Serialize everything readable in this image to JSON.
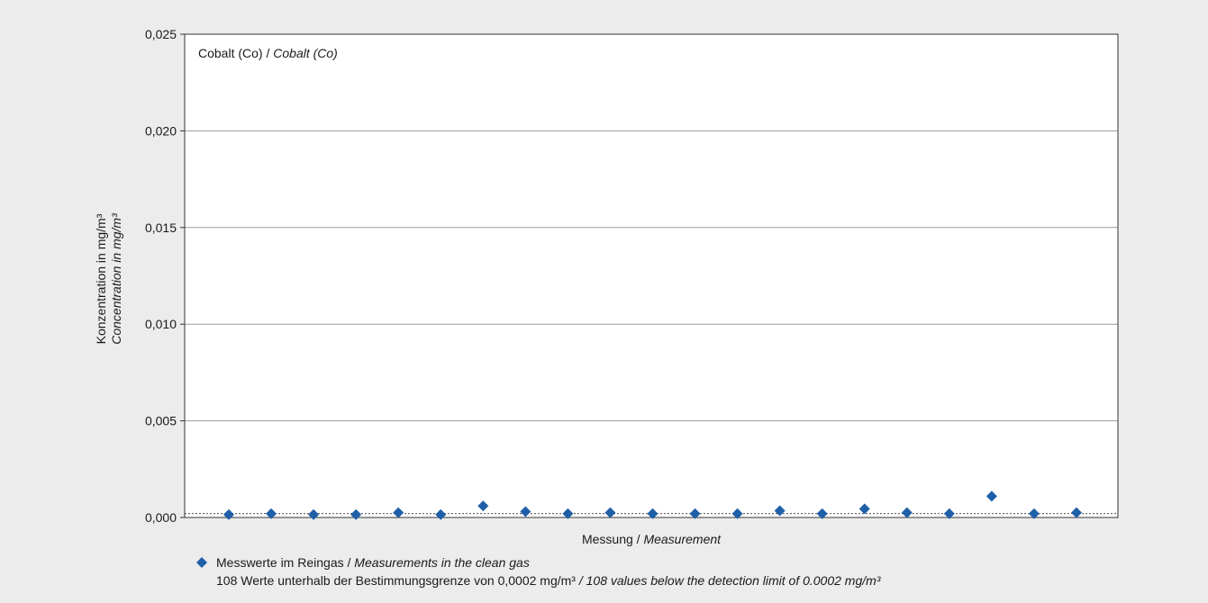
{
  "chart_data": {
    "type": "scatter",
    "title": "Cobalt (Co)",
    "title_en": "Cobalt (Co)",
    "xlabel": "Messung",
    "xlabel_en": "Measurement",
    "ylabel": "Konzentration in mg/m³",
    "ylabel_en": "Concentration in mg/m³",
    "ylim": [
      0,
      0.025
    ],
    "yticks": [
      0,
      0.005,
      0.01,
      0.015,
      0.02,
      0.025
    ],
    "ytick_labels": [
      "0,000",
      "0,005",
      "0,010",
      "0,015",
      "0,020",
      "0,025"
    ],
    "grid": true,
    "detection_limit": 0.0002,
    "series": [
      {
        "name": "Messwerte im Reingas",
        "name_en": "Measurements in the clean gas",
        "color": "#1f5fa8",
        "marker": "diamond",
        "x": [
          1,
          2,
          3,
          4,
          5,
          6,
          7,
          8,
          9,
          10,
          11,
          12,
          13,
          14,
          15,
          16,
          17,
          18,
          19,
          20,
          21
        ],
        "values": [
          0.00015,
          0.0002,
          0.00015,
          0.00015,
          0.00025,
          0.00015,
          0.0006,
          0.0003,
          0.0002,
          0.00025,
          0.0002,
          0.0002,
          0.0002,
          0.00035,
          0.0002,
          0.00045,
          0.00025,
          0.0002,
          0.0011,
          0.0002,
          0.00025
        ]
      }
    ],
    "note": "108 Werte unterhalb der Bestimmungsgrenze von 0,0002 mg/m³",
    "note_en": "/ 108 values below the detection limit of 0.0002 mg/m³"
  }
}
